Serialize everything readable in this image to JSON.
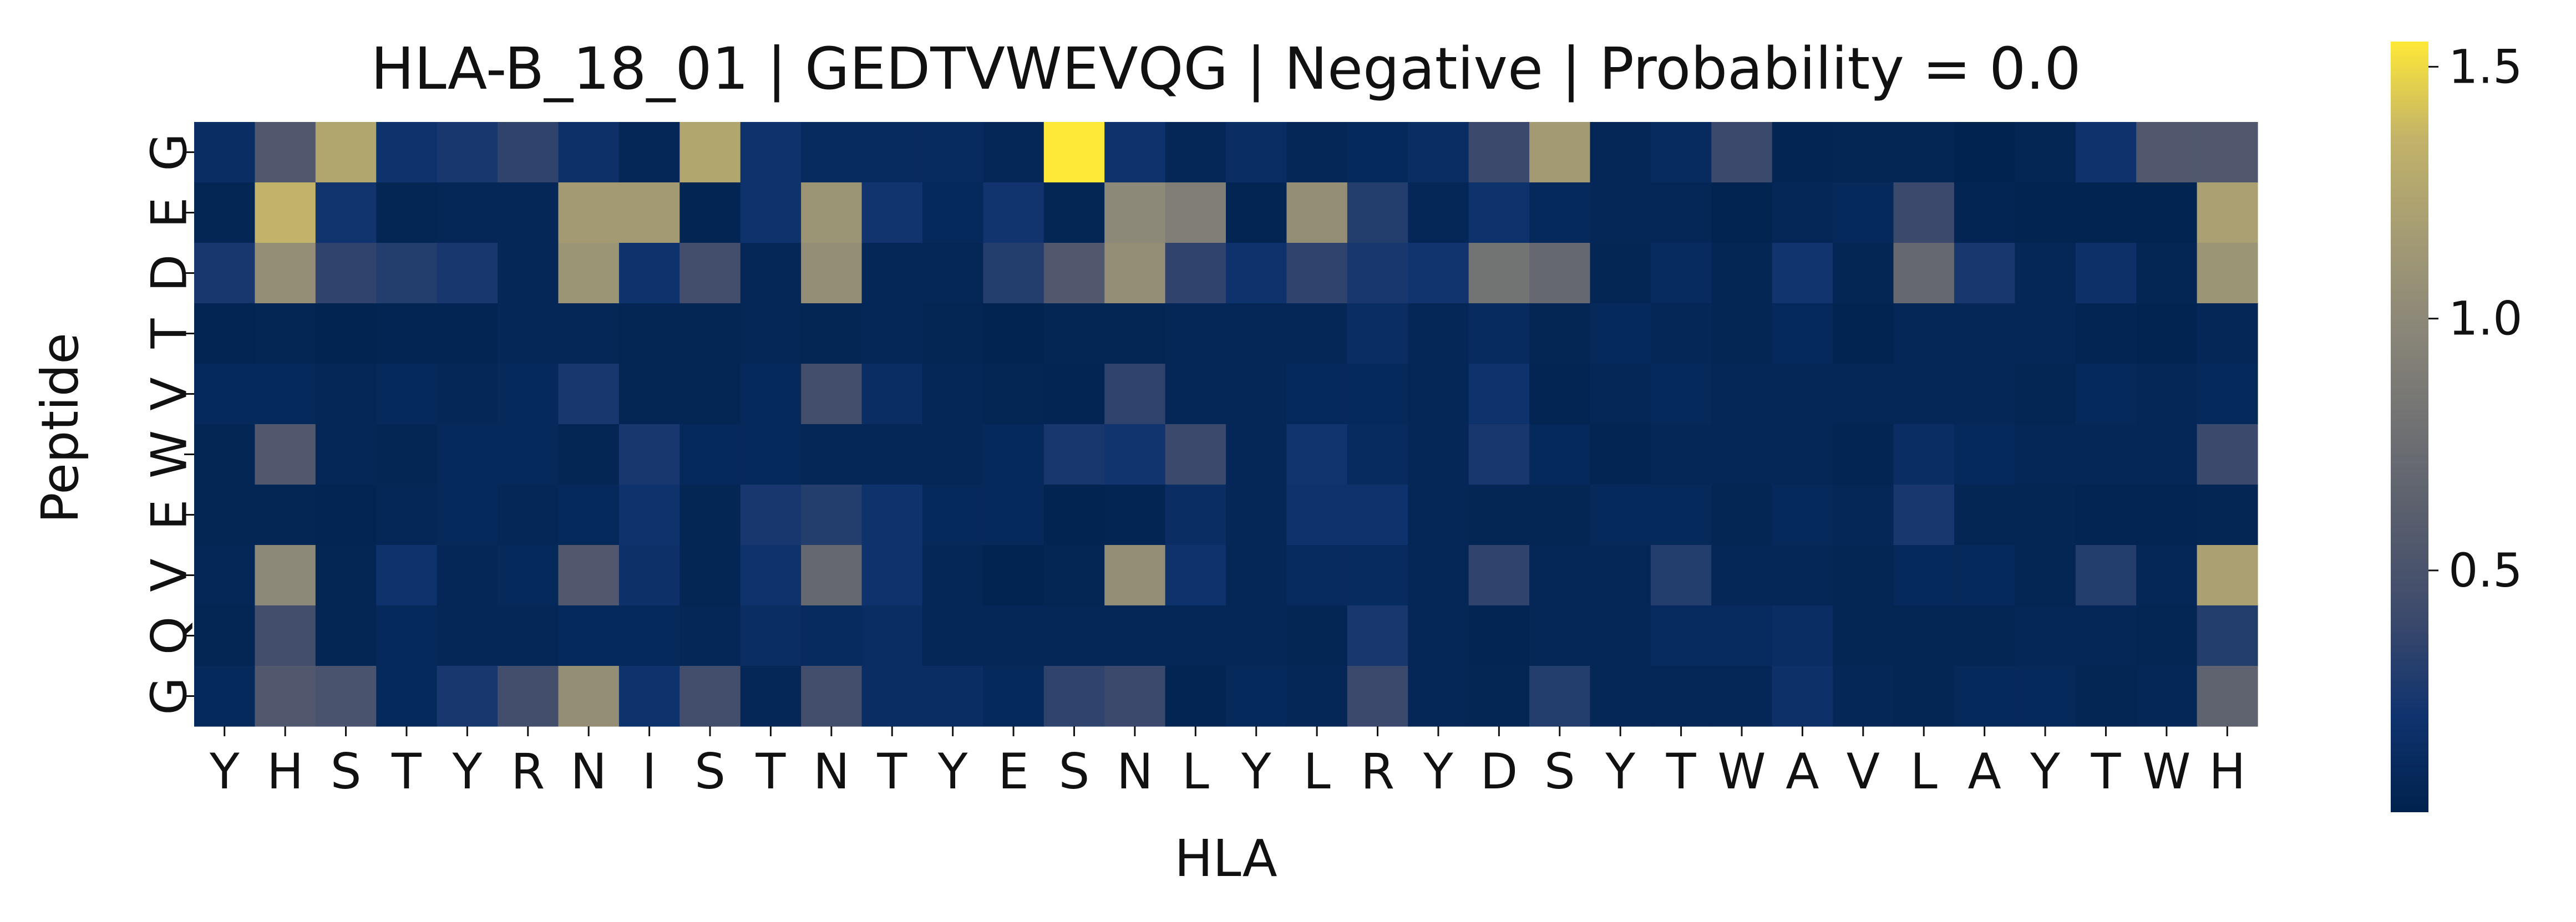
{
  "chart_data": {
    "type": "heatmap",
    "title": "HLA-B_18_01 | GEDTVWEVQG | Negative | Probability = 0.0",
    "xlabel": "HLA",
    "ylabel": "Peptide",
    "x_labels": [
      "Y",
      "H",
      "S",
      "T",
      "Y",
      "R",
      "N",
      "I",
      "S",
      "T",
      "N",
      "T",
      "Y",
      "E",
      "S",
      "N",
      "L",
      "Y",
      "L",
      "R",
      "Y",
      "D",
      "S",
      "Y",
      "T",
      "W",
      "A",
      "V",
      "L",
      "A",
      "Y",
      "T",
      "W",
      "H"
    ],
    "y_labels": [
      "G",
      "E",
      "D",
      "T",
      "V",
      "W",
      "E",
      "V",
      "Q",
      "G"
    ],
    "colorbar": {
      "min": 0.02,
      "max": 1.55,
      "ticks": [
        0.5,
        1.0,
        1.5
      ],
      "tick_labels": [
        "0.5",
        "1.0",
        "1.5"
      ],
      "colormap": "cividis"
    },
    "values": [
      [
        0.15,
        0.55,
        1.25,
        0.2,
        0.25,
        0.35,
        0.18,
        0.08,
        1.25,
        0.2,
        0.12,
        0.12,
        0.12,
        0.08,
        1.55,
        0.2,
        0.08,
        0.15,
        0.08,
        0.1,
        0.15,
        0.4,
        1.15,
        0.08,
        0.12,
        0.4,
        0.05,
        0.06,
        0.06,
        0.03,
        0.06,
        0.2,
        0.55,
        0.55
      ],
      [
        0.06,
        1.35,
        0.22,
        0.06,
        0.08,
        0.08,
        1.15,
        1.15,
        0.05,
        0.2,
        1.1,
        0.22,
        0.1,
        0.22,
        0.06,
        1.0,
        0.9,
        0.05,
        1.05,
        0.3,
        0.08,
        0.2,
        0.1,
        0.08,
        0.08,
        0.04,
        0.08,
        0.1,
        0.4,
        0.05,
        0.04,
        0.04,
        0.04,
        1.2
      ],
      [
        0.25,
        1.05,
        0.35,
        0.3,
        0.25,
        0.08,
        1.1,
        0.2,
        0.45,
        0.08,
        1.05,
        0.08,
        0.08,
        0.3,
        0.55,
        1.05,
        0.35,
        0.2,
        0.35,
        0.25,
        0.22,
        0.8,
        0.7,
        0.06,
        0.12,
        0.06,
        0.22,
        0.06,
        0.7,
        0.25,
        0.08,
        0.18,
        0.06,
        1.1
      ],
      [
        0.05,
        0.06,
        0.04,
        0.05,
        0.05,
        0.08,
        0.08,
        0.06,
        0.06,
        0.08,
        0.06,
        0.08,
        0.06,
        0.04,
        0.06,
        0.06,
        0.08,
        0.08,
        0.08,
        0.15,
        0.08,
        0.12,
        0.06,
        0.1,
        0.08,
        0.06,
        0.1,
        0.04,
        0.08,
        0.08,
        0.08,
        0.05,
        0.04,
        0.08
      ],
      [
        0.1,
        0.1,
        0.08,
        0.1,
        0.08,
        0.1,
        0.25,
        0.06,
        0.06,
        0.1,
        0.45,
        0.15,
        0.08,
        0.06,
        0.05,
        0.35,
        0.08,
        0.08,
        0.1,
        0.1,
        0.08,
        0.2,
        0.05,
        0.08,
        0.1,
        0.08,
        0.08,
        0.08,
        0.08,
        0.08,
        0.06,
        0.1,
        0.08,
        0.1
      ],
      [
        0.06,
        0.55,
        0.08,
        0.06,
        0.1,
        0.1,
        0.06,
        0.25,
        0.1,
        0.1,
        0.08,
        0.08,
        0.08,
        0.1,
        0.25,
        0.22,
        0.4,
        0.08,
        0.22,
        0.12,
        0.08,
        0.25,
        0.1,
        0.05,
        0.08,
        0.08,
        0.08,
        0.05,
        0.15,
        0.1,
        0.08,
        0.08,
        0.08,
        0.4
      ],
      [
        0.06,
        0.06,
        0.05,
        0.08,
        0.1,
        0.08,
        0.1,
        0.2,
        0.06,
        0.25,
        0.3,
        0.2,
        0.1,
        0.1,
        0.04,
        0.05,
        0.15,
        0.08,
        0.2,
        0.2,
        0.08,
        0.06,
        0.06,
        0.1,
        0.1,
        0.06,
        0.1,
        0.08,
        0.25,
        0.06,
        0.06,
        0.05,
        0.05,
        0.06
      ],
      [
        0.08,
        1.0,
        0.06,
        0.2,
        0.08,
        0.1,
        0.55,
        0.18,
        0.06,
        0.2,
        0.7,
        0.2,
        0.08,
        0.04,
        0.06,
        1.05,
        0.2,
        0.08,
        0.12,
        0.12,
        0.08,
        0.35,
        0.08,
        0.08,
        0.3,
        0.08,
        0.08,
        0.06,
        0.1,
        0.1,
        0.06,
        0.3,
        0.08,
        1.2
      ],
      [
        0.06,
        0.45,
        0.06,
        0.1,
        0.08,
        0.08,
        0.1,
        0.1,
        0.08,
        0.15,
        0.12,
        0.15,
        0.08,
        0.08,
        0.08,
        0.08,
        0.08,
        0.08,
        0.06,
        0.25,
        0.08,
        0.05,
        0.08,
        0.08,
        0.12,
        0.12,
        0.15,
        0.06,
        0.06,
        0.06,
        0.08,
        0.08,
        0.06,
        0.3
      ],
      [
        0.1,
        0.55,
        0.5,
        0.1,
        0.25,
        0.45,
        1.05,
        0.2,
        0.45,
        0.08,
        0.45,
        0.15,
        0.15,
        0.1,
        0.35,
        0.4,
        0.05,
        0.1,
        0.08,
        0.4,
        0.08,
        0.06,
        0.3,
        0.08,
        0.08,
        0.08,
        0.18,
        0.08,
        0.06,
        0.1,
        0.1,
        0.06,
        0.08,
        0.65
      ]
    ]
  }
}
